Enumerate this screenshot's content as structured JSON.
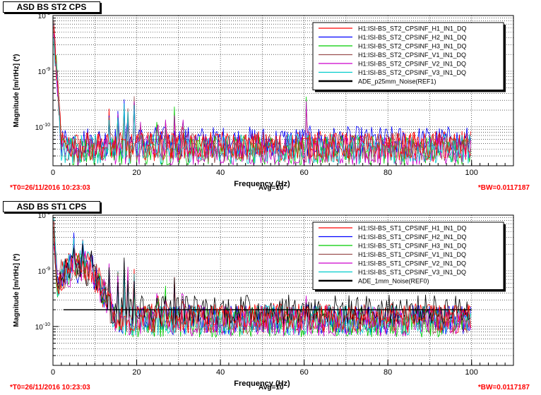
{
  "panels": [
    {
      "title": "ASD BS ST2 CPS",
      "footer": {
        "left": "*T0=26/11/2016 10:23:03",
        "center": "Avg=10",
        "right": "*BW=0.0117187"
      },
      "chart_data": {
        "type": "line",
        "xlabel": "Frequency (Hz)",
        "ylabel": "Magnitude [m/rtHz] (*)",
        "xlim": [
          0,
          110
        ],
        "ylim": [
          2e-11,
          1e-08
        ],
        "yscale": "log",
        "grid": true,
        "x_ticks": [
          0,
          20,
          40,
          60,
          80,
          100
        ],
        "y_ticks": [
          {
            "value": 1e-10,
            "label": "10-10"
          },
          {
            "value": 1e-09,
            "label": "10-9"
          },
          {
            "value": 1e-08,
            "label": "10-8"
          }
        ],
        "legend_position": "top-right",
        "series": [
          {
            "name": "H1:ISI-BS_ST2_CPSINF_H1_IN1_DQ",
            "color": "#ff0000",
            "level": 4.5e-11
          },
          {
            "name": "H1:ISI-BS_ST2_CPSINF_H2_IN1_DQ",
            "color": "#0000ff",
            "level": 5.5e-11
          },
          {
            "name": "H1:ISI-BS_ST2_CPSINF_H3_IN1_DQ",
            "color": "#00cc00",
            "level": 3.8e-11
          },
          {
            "name": "H1:ISI-BS_ST2_CPSINF_V1_IN1_DQ",
            "color": "#9b4f4f",
            "level": 4.2e-11
          },
          {
            "name": "H1:ISI-BS_ST2_CPSINF_V2_IN1_DQ",
            "color": "#cc00cc",
            "level": 3.6e-11
          },
          {
            "name": "H1:ISI-BS_ST2_CPSINF_V3_IN1_DQ",
            "color": "#00cccc",
            "level": 4e-11
          },
          {
            "name": "ADE_p25mm_Noise(REF1)",
            "color": "#000000",
            "level": null
          }
        ],
        "peaks": [
          {
            "x": 13.5,
            "y": 2.3e-10
          },
          {
            "x": 15.5,
            "y": 2e-10
          },
          {
            "x": 17,
            "y": 3.5e-10
          },
          {
            "x": 18,
            "y": 2.5e-10
          },
          {
            "x": 19.5,
            "y": 3.8e-10
          },
          {
            "x": 21,
            "y": 1.5e-10
          },
          {
            "x": 25,
            "y": 1.3e-10
          },
          {
            "x": 27,
            "y": 1.5e-10
          },
          {
            "x": 29,
            "y": 2.5e-10
          },
          {
            "x": 31,
            "y": 1.4e-10
          },
          {
            "x": 60.5,
            "y": 3.5e-10
          }
        ]
      }
    },
    {
      "title": "ASD BS ST1 CPS",
      "footer": {
        "left": "*T0=26/11/2016 10:23:03",
        "center": "Avg=10",
        "right": "*BW=0.0117187"
      },
      "chart_data": {
        "type": "line",
        "xlabel": "Frequency (Hz)",
        "ylabel": "Magnitude [m/rtHz] (*)",
        "xlim": [
          0,
          110
        ],
        "ylim": [
          2e-11,
          1e-08
        ],
        "yscale": "log",
        "grid": true,
        "x_ticks": [
          0,
          20,
          40,
          60,
          80,
          100
        ],
        "y_ticks": [
          {
            "value": 1e-10,
            "label": "10-10"
          },
          {
            "value": 1e-09,
            "label": "10-9"
          },
          {
            "value": 1e-08,
            "label": "10-8"
          }
        ],
        "legend_position": "top-right",
        "series": [
          {
            "name": "H1:ISI-BS_ST1_CPSINF_H1_IN1_DQ",
            "color": "#ff0000",
            "level": 1.4e-10
          },
          {
            "name": "H1:ISI-BS_ST1_CPSINF_H2_IN1_DQ",
            "color": "#0000ff",
            "level": 1.3e-10
          },
          {
            "name": "H1:ISI-BS_ST1_CPSINF_H3_IN1_DQ",
            "color": "#00cc00",
            "level": 1.2e-10
          },
          {
            "name": "H1:ISI-BS_ST1_CPSINF_V1_IN1_DQ",
            "color": "#9b4f4f",
            "level": 1.35e-10
          },
          {
            "name": "H1:ISI-BS_ST1_CPSINF_V2_IN1_DQ",
            "color": "#cc00cc",
            "level": 1.25e-10
          },
          {
            "name": "H1:ISI-BS_ST1_CPSINF_V3_IN1_DQ",
            "color": "#00cccc",
            "level": 1.3e-10
          },
          {
            "name": "ADE_1mm_Noise(REF0)",
            "color": "#000000",
            "level": 2e-10
          }
        ],
        "hump": {
          "center": 6,
          "peak": 1.5e-09,
          "width": 6
        },
        "peaks": [
          {
            "x": 5,
            "y": 5e-09
          },
          {
            "x": 7,
            "y": 4e-09
          },
          {
            "x": 9,
            "y": 2.5e-09
          },
          {
            "x": 13.5,
            "y": 1.6e-09
          },
          {
            "x": 15.5,
            "y": 1e-09
          },
          {
            "x": 17,
            "y": 2.5e-09
          },
          {
            "x": 18,
            "y": 1.2e-09
          },
          {
            "x": 19.5,
            "y": 1.2e-09
          },
          {
            "x": 25,
            "y": 4e-10
          },
          {
            "x": 27,
            "y": 6e-10
          },
          {
            "x": 29,
            "y": 8e-10
          },
          {
            "x": 31,
            "y": 4e-10
          },
          {
            "x": 60.5,
            "y": 4e-10
          }
        ]
      }
    }
  ]
}
